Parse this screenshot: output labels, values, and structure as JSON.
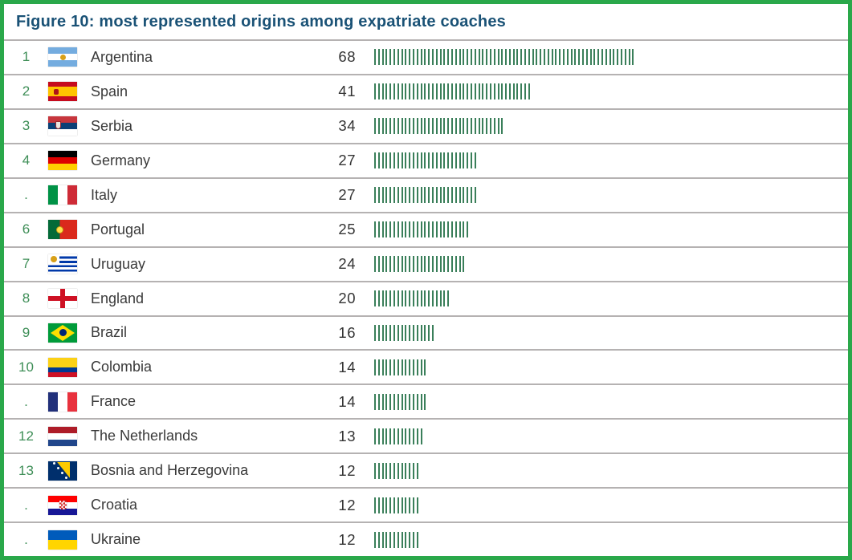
{
  "title": "Figure 10: most represented origins among expatriate coaches",
  "colors": {
    "frame_border_green": "#2aa84a",
    "title_blue": "#1a5276",
    "rank_green": "#3e8e57",
    "tally_green": "#3a7f5a",
    "separator_gray": "#b5b2b2",
    "text_dark": "#3a3a3a"
  },
  "chart_data": {
    "type": "table",
    "title": "Figure 10: most represented origins among expatriate coaches",
    "columns": [
      "rank",
      "flag",
      "country",
      "count",
      "tally_marks"
    ],
    "tally_unit": 1,
    "rows": [
      {
        "rank": "1",
        "flag": "argentina",
        "country": "Argentina",
        "count": 68
      },
      {
        "rank": "2",
        "flag": "spain",
        "country": "Spain",
        "count": 41
      },
      {
        "rank": "3",
        "flag": "serbia",
        "country": "Serbia",
        "count": 34
      },
      {
        "rank": "4",
        "flag": "germany",
        "country": "Germany",
        "count": 27
      },
      {
        "rank": ".",
        "flag": "italy",
        "country": "Italy",
        "count": 27
      },
      {
        "rank": "6",
        "flag": "portugal",
        "country": "Portugal",
        "count": 25
      },
      {
        "rank": "7",
        "flag": "uruguay",
        "country": "Uruguay",
        "count": 24
      },
      {
        "rank": "8",
        "flag": "england",
        "country": "England",
        "count": 20
      },
      {
        "rank": "9",
        "flag": "brazil",
        "country": "Brazil",
        "count": 16
      },
      {
        "rank": "10",
        "flag": "colombia",
        "country": "Colombia",
        "count": 14
      },
      {
        "rank": ".",
        "flag": "france",
        "country": "France",
        "count": 14
      },
      {
        "rank": "12",
        "flag": "netherlands",
        "country": "The Netherlands",
        "count": 13
      },
      {
        "rank": "13",
        "flag": "bosnia-and-herzegovina",
        "country": "Bosnia and Herzegovina",
        "count": 12
      },
      {
        "rank": ".",
        "flag": "croatia",
        "country": "Croatia",
        "count": 12
      },
      {
        "rank": ".",
        "flag": "ukraine",
        "country": "Ukraine",
        "count": 12
      }
    ]
  }
}
